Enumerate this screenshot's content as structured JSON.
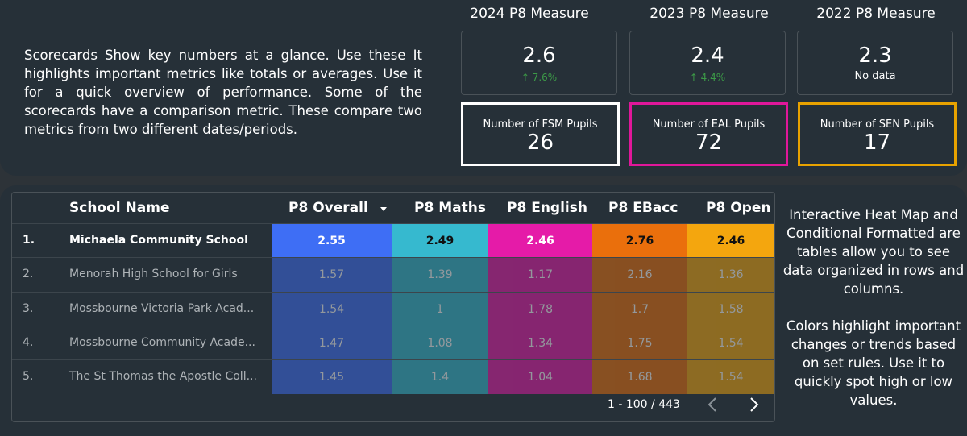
{
  "description_left": "Scorecards Show key numbers at a glance. Use these It highlights important metrics like totals or averages. Use it for a quick overview of performance. Some of the scorecards have a comparison metric. These compare two metrics from two different dates/periods.",
  "scorecards": [
    {
      "title": "2024 P8 Measure",
      "value": "2.6",
      "delta": "↑ 7.6%"
    },
    {
      "title": "2023 P8 Measure",
      "value": "2.4",
      "delta": "↑ 4.4%"
    },
    {
      "title": "2022 P8 Measure",
      "value": "2.3",
      "note": "No data"
    }
  ],
  "pupils": [
    {
      "label": "Number of FSM Pupils",
      "value": "26",
      "border": "#ffffff"
    },
    {
      "label": "Number of EAL Pupils",
      "value": "72",
      "border": "#e0179a"
    },
    {
      "label": "Number of SEN Pupils",
      "value": "17",
      "border": "#e8a200"
    }
  ],
  "table": {
    "headers": {
      "school": "School Name",
      "overall": "P8 Overall",
      "maths": "P8 Maths",
      "english": "P8 English",
      "ebacc": "P8 EBacc",
      "open": "P8 Open"
    },
    "sort_icon": "caret-down-icon",
    "rows": [
      {
        "idx": "1.",
        "name": "Michaela Community School",
        "overall": "2.55",
        "maths": "2.49",
        "english": "2.46",
        "ebacc": "2.76",
        "open": "2.46"
      },
      {
        "idx": "2.",
        "name": "Menorah High School for Girls",
        "overall": "1.57",
        "maths": "1.39",
        "english": "1.17",
        "ebacc": "2.16",
        "open": "1.36"
      },
      {
        "idx": "3.",
        "name": "Mossbourne Victoria Park Acad...",
        "overall": "1.54",
        "maths": "1",
        "english": "1.78",
        "ebacc": "1.7",
        "open": "1.58"
      },
      {
        "idx": "4.",
        "name": "Mossbourne Community Acade...",
        "overall": "1.47",
        "maths": "1.08",
        "english": "1.34",
        "ebacc": "1.75",
        "open": "1.54"
      },
      {
        "idx": "5.",
        "name": "The St Thomas the Apostle Coll...",
        "overall": "1.45",
        "maths": "1.4",
        "english": "1.04",
        "ebacc": "1.68",
        "open": "1.54"
      }
    ],
    "column_colors": {
      "overall": "#3e6ef5",
      "maths": "#36b9cf",
      "english": "#e51ba8",
      "ebacc": "#ea6f0c",
      "open": "#f4a60e"
    },
    "pagination": {
      "text": "1 - 100 / 443",
      "prev_icon": "chevron-left-icon",
      "next_icon": "chevron-right-icon"
    }
  },
  "description_right": {
    "para1": "Interactive Heat Map and Conditional Formatted are tables allow you to see data organized in rows and columns.",
    "para2": "Colors highlight important changes or trends based on set rules. Use it to quickly spot high or low values."
  }
}
